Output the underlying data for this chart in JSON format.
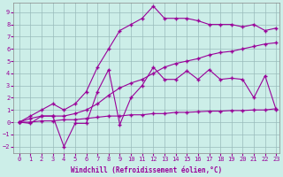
{
  "xlabel": "Windchill (Refroidissement éolien,°C)",
  "xlim_min": -0.5,
  "xlim_max": 23.3,
  "ylim_min": -2.5,
  "ylim_max": 9.8,
  "bg_color": "#cceee8",
  "line_color": "#990099",
  "grid_color": "#99bbbb",
  "xticks": [
    0,
    1,
    2,
    3,
    4,
    5,
    6,
    7,
    8,
    9,
    10,
    11,
    12,
    13,
    14,
    15,
    16,
    17,
    18,
    19,
    20,
    21,
    22,
    23
  ],
  "yticks": [
    -2,
    -1,
    0,
    1,
    2,
    3,
    4,
    5,
    6,
    7,
    8,
    9
  ],
  "lineA_x": [
    0,
    1,
    2,
    3,
    4,
    5,
    6,
    7,
    8,
    9,
    10,
    11,
    12,
    13,
    14,
    15,
    16,
    17,
    18,
    19,
    20,
    21,
    22,
    23
  ],
  "lineA_y": [
    0.0,
    0.5,
    1.0,
    1.5,
    1.0,
    1.5,
    2.5,
    4.5,
    6.0,
    7.5,
    8.0,
    8.5,
    9.5,
    8.5,
    8.5,
    8.5,
    8.3,
    8.0,
    8.0,
    8.0,
    7.8,
    8.0,
    7.5,
    7.7
  ],
  "lineB_x": [
    0,
    1,
    2,
    3,
    4,
    5,
    6,
    7,
    8,
    9,
    10,
    11,
    12,
    13,
    14,
    15,
    16,
    17,
    18,
    19,
    20,
    21,
    22,
    23
  ],
  "lineB_y": [
    0.0,
    0.3,
    0.5,
    0.5,
    0.5,
    0.7,
    1.0,
    1.5,
    2.2,
    2.8,
    3.2,
    3.5,
    4.0,
    4.5,
    4.8,
    5.0,
    5.2,
    5.5,
    5.7,
    5.8,
    6.0,
    6.2,
    6.4,
    6.5
  ],
  "lineC_x": [
    0,
    1,
    2,
    3,
    4,
    5,
    6,
    7,
    8,
    9,
    10,
    11,
    12,
    13,
    14,
    15,
    16,
    17,
    18,
    19,
    20,
    21,
    22,
    23
  ],
  "lineC_y": [
    0.0,
    -0.1,
    0.5,
    0.5,
    -2.0,
    -0.1,
    -0.1,
    2.5,
    4.3,
    -0.2,
    2.0,
    3.0,
    4.5,
    3.5,
    3.5,
    4.2,
    3.5,
    4.3,
    3.5,
    3.6,
    3.5,
    2.0,
    3.8,
    1.0
  ],
  "lineD_x": [
    0,
    1,
    2,
    3,
    4,
    5,
    6,
    7,
    8,
    9,
    10,
    11,
    12,
    13,
    14,
    15,
    16,
    17,
    18,
    19,
    20,
    21,
    22,
    23
  ],
  "lineD_y": [
    0.0,
    0.0,
    0.1,
    0.1,
    0.2,
    0.2,
    0.3,
    0.4,
    0.5,
    0.5,
    0.6,
    0.6,
    0.7,
    0.7,
    0.8,
    0.8,
    0.85,
    0.9,
    0.9,
    0.95,
    0.95,
    1.0,
    1.0,
    1.1
  ]
}
